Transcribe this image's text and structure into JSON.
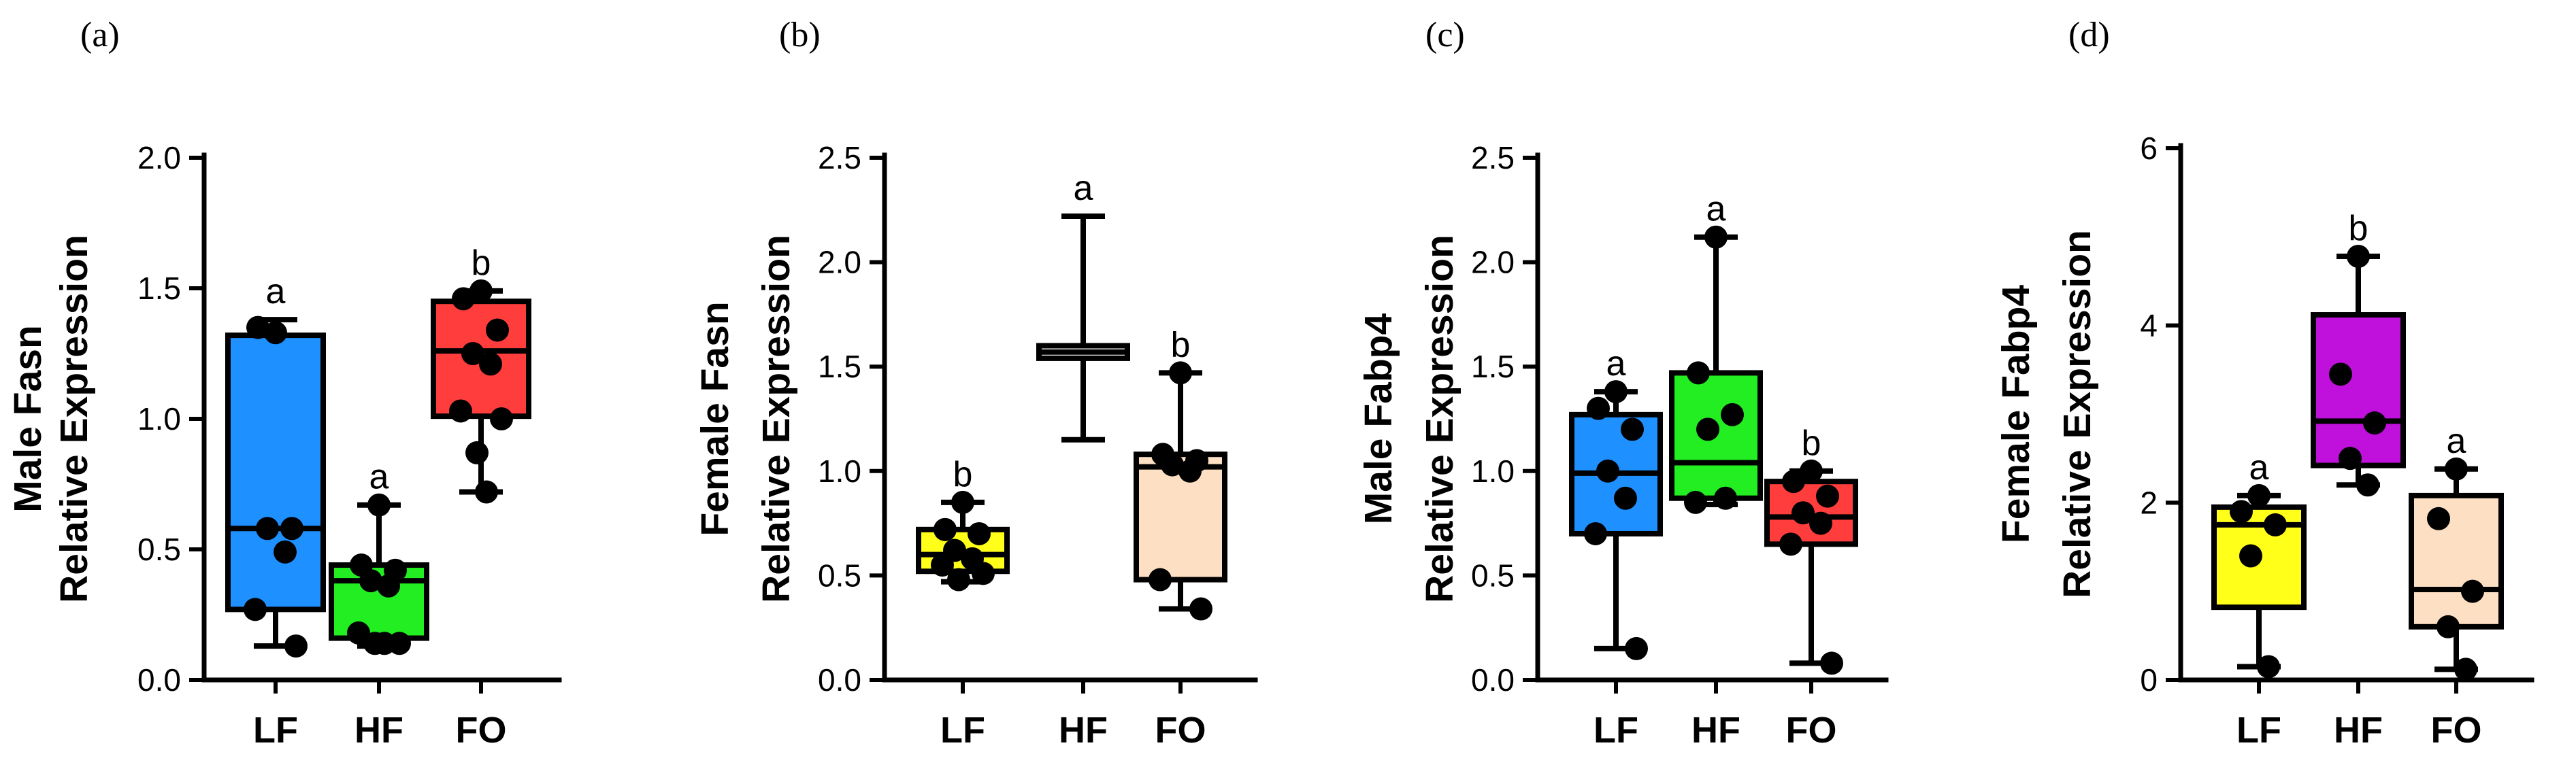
{
  "chart_data": [
    {
      "type": "box",
      "panel_label": "(a)",
      "title": "",
      "ylabel_lines": [
        "Male Fasn",
        "Relative Expression"
      ],
      "xlabel": "",
      "ylim": [
        0,
        2.0
      ],
      "yticks": [
        0.0,
        0.5,
        1.0,
        1.5,
        2.0
      ],
      "ytick_labels": [
        "0.0",
        "0.5",
        "1.0",
        "1.5",
        "2.0"
      ],
      "categories": [
        "LF",
        "HF",
        "FO"
      ],
      "groups": [
        {
          "name": "LF",
          "color": "#1e90ff",
          "q1": 0.27,
          "median": 0.58,
          "q3": 1.32,
          "min": 0.13,
          "max": 1.38,
          "letter": "a",
          "points": [
            1.33,
            1.35,
            0.58,
            0.58,
            0.49,
            0.27,
            0.13
          ]
        },
        {
          "name": "HF",
          "color": "#22ee22",
          "q1": 0.16,
          "median": 0.38,
          "q3": 0.44,
          "min": 0.13,
          "max": 0.67,
          "letter": "a",
          "points": [
            0.67,
            0.44,
            0.42,
            0.38,
            0.36,
            0.18,
            0.14,
            0.14,
            0.14
          ]
        },
        {
          "name": "FO",
          "color": "#ff3d3d",
          "q1": 1.01,
          "median": 1.26,
          "q3": 1.45,
          "min": 0.72,
          "max": 1.49,
          "letter": "b",
          "points": [
            1.49,
            1.46,
            1.34,
            1.25,
            1.21,
            1.03,
            1.0,
            0.87,
            0.72
          ]
        }
      ]
    },
    {
      "type": "box",
      "panel_label": "(b)",
      "title": "",
      "ylabel_lines": [
        "Female Fasn",
        "Relative Expression"
      ],
      "xlabel": "",
      "ylim": [
        0,
        2.5
      ],
      "yticks": [
        0.0,
        0.5,
        1.0,
        1.5,
        2.0,
        2.5
      ],
      "ytick_labels": [
        "0.0",
        "0.5",
        "1.0",
        "1.5",
        "2.0",
        "2.5"
      ],
      "categories": [
        "LF",
        "HF",
        "FO"
      ],
      "groups": [
        {
          "name": "LF",
          "color": "#ffff1a",
          "q1": 0.52,
          "median": 0.6,
          "q3": 0.72,
          "min": 0.47,
          "max": 0.85,
          "letter": "b",
          "points": [
            0.85,
            0.72,
            0.7,
            0.62,
            0.58,
            0.55,
            0.51,
            0.48
          ]
        },
        {
          "name": "HF",
          "color": "#ffffff",
          "q1": 1.54,
          "median": 1.57,
          "q3": 1.6,
          "min": 1.15,
          "max": 2.22,
          "letter": "a",
          "points": []
        },
        {
          "name": "FO",
          "color": "#fde0c4",
          "q1": 0.48,
          "median": 1.02,
          "q3": 1.08,
          "min": 0.34,
          "max": 1.47,
          "letter": "b",
          "points": [
            1.47,
            1.08,
            1.05,
            1.03,
            1.0,
            0.48,
            0.34
          ]
        }
      ]
    },
    {
      "type": "box",
      "panel_label": "(c)",
      "title": "",
      "ylabel_lines": [
        "Male Fabp4",
        "Relative Expression"
      ],
      "xlabel": "",
      "ylim": [
        0,
        2.5
      ],
      "yticks": [
        0.0,
        0.5,
        1.0,
        1.5,
        2.0,
        2.5
      ],
      "ytick_labels": [
        "0.0",
        "0.5",
        "1.0",
        "1.5",
        "2.0",
        "2.5"
      ],
      "categories": [
        "LF",
        "HF",
        "FO"
      ],
      "groups": [
        {
          "name": "LF",
          "color": "#1e90ff",
          "q1": 0.7,
          "median": 0.99,
          "q3": 1.27,
          "min": 0.15,
          "max": 1.38,
          "letter": "a",
          "points": [
            1.38,
            1.3,
            1.2,
            1.0,
            0.87,
            0.7,
            0.15
          ]
        },
        {
          "name": "HF",
          "color": "#22ee22",
          "q1": 0.87,
          "median": 1.04,
          "q3": 1.47,
          "min": 0.84,
          "max": 2.12,
          "letter": "a",
          "points": [
            2.12,
            1.47,
            1.27,
            1.2,
            0.87,
            0.85
          ]
        },
        {
          "name": "FO",
          "color": "#ff3d3d",
          "q1": 0.65,
          "median": 0.78,
          "q3": 0.95,
          "min": 0.08,
          "max": 1.0,
          "letter": "b",
          "points": [
            1.0,
            0.95,
            0.88,
            0.8,
            0.75,
            0.65,
            0.08
          ]
        }
      ]
    },
    {
      "type": "box",
      "panel_label": "(d)",
      "title": "",
      "ylabel_lines": [
        "Female Fabp4",
        "Relative Expression"
      ],
      "xlabel": "",
      "ylim": [
        0,
        6
      ],
      "yticks": [
        0,
        2,
        4,
        6
      ],
      "ytick_labels": [
        "0",
        "2",
        "4",
        "6"
      ],
      "categories": [
        "LF",
        "HF",
        "FO"
      ],
      "groups": [
        {
          "name": "LF",
          "color": "#ffff1a",
          "q1": 0.82,
          "median": 1.75,
          "q3": 1.95,
          "min": 0.15,
          "max": 2.08,
          "letter": "a",
          "points": [
            2.08,
            1.9,
            1.75,
            1.4,
            0.15
          ]
        },
        {
          "name": "HF",
          "color": "#c010dc",
          "q1": 2.42,
          "median": 2.92,
          "q3": 4.12,
          "min": 2.2,
          "max": 4.78,
          "letter": "b",
          "points": [
            4.78,
            3.45,
            2.9,
            2.5,
            2.2
          ]
        },
        {
          "name": "FO",
          "color": "#fde0c4",
          "q1": 0.6,
          "median": 1.02,
          "q3": 2.08,
          "min": 0.12,
          "max": 2.38,
          "letter": "a",
          "points": [
            2.38,
            1.82,
            1.0,
            0.6,
            0.12
          ]
        }
      ]
    }
  ]
}
